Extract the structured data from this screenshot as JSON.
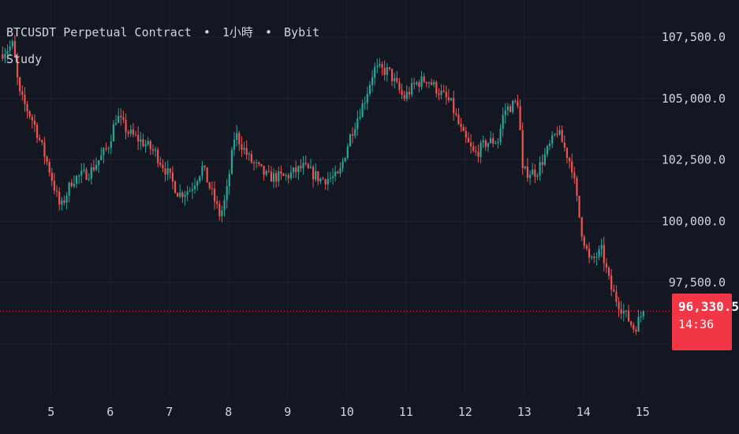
{
  "header": {
    "symbol": "BTCUSDT Perpetual Contract",
    "separator": "•",
    "interval": "1小時",
    "exchange": "Bybit",
    "study_label": "Study"
  },
  "colors": {
    "background": "#131722",
    "grid": "#1f2330",
    "up": "#26a69a",
    "down": "#ef5350",
    "price_line": "#f23645",
    "text": "#d1d4dc"
  },
  "last_price": {
    "value": 96330.5,
    "label": "96,330.5",
    "countdown": "14:36"
  },
  "chart_data": {
    "type": "candlestick",
    "x_ticks": [
      "5",
      "6",
      "7",
      "8",
      "9",
      "10",
      "11",
      "12",
      "13",
      "14",
      "15"
    ],
    "y_ticks": [
      "107,500.0",
      "105,000.0",
      "102,500.0",
      "100,000.0",
      "97,500.0"
    ],
    "y_tick_values": [
      107500,
      105000,
      102500,
      100000,
      97500
    ],
    "ylim": [
      93000,
      109000
    ],
    "x_range": [
      4.18,
      15.28
    ],
    "grid": true,
    "trend_days": [
      4.18,
      4.4,
      4.5,
      4.75,
      5.0,
      5.2,
      5.4,
      5.7,
      6.0,
      6.15,
      6.35,
      6.6,
      6.8,
      7.0,
      7.2,
      7.4,
      7.6,
      7.9,
      8.0,
      8.15,
      8.4,
      8.7,
      9.0,
      9.3,
      9.6,
      9.9,
      10.1,
      10.35,
      10.5,
      10.75,
      11.0,
      11.2,
      11.4,
      11.55,
      11.8,
      12.0,
      12.2,
      12.4,
      12.6,
      12.7,
      12.95,
      13.0,
      13.25,
      13.5,
      13.6,
      13.85,
      14.0,
      14.15,
      14.35,
      14.5,
      14.6,
      14.9,
      15.05
    ],
    "trend_prices": [
      106800,
      107200,
      105200,
      104000,
      102200,
      100500,
      101700,
      102000,
      103000,
      104300,
      103600,
      103200,
      102800,
      102000,
      101100,
      101300,
      102200,
      100200,
      101000,
      103600,
      102500,
      101800,
      101800,
      102200,
      101700,
      101800,
      103500,
      105000,
      106200,
      106100,
      105000,
      105600,
      105800,
      105400,
      104800,
      103500,
      102700,
      103200,
      103300,
      104500,
      104900,
      102000,
      102000,
      103200,
      103700,
      102200,
      99700,
      98300,
      98800,
      97300,
      96800,
      95600,
      96330.5
    ]
  }
}
